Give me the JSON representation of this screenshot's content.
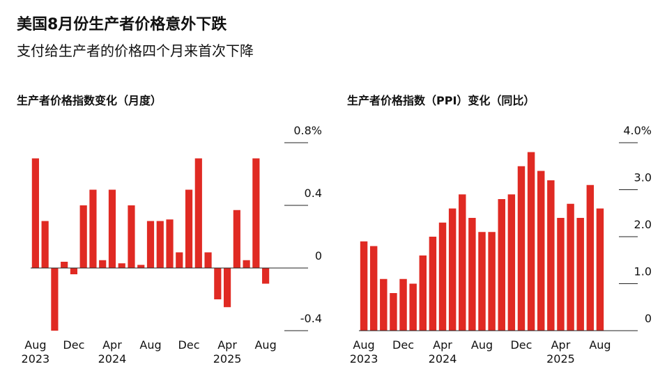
{
  "title": "美国8月份生产者价格意外下跌",
  "subtitle": "支付给生产者的价格四个月来首次下降",
  "chart_data": [
    {
      "type": "bar",
      "title": "生产者价格指数变化（月度）",
      "color": "#e02a23",
      "categories": [
        "Aug 2023",
        null,
        null,
        null,
        "Dec",
        null,
        null,
        null,
        "Apr 2024",
        null,
        null,
        null,
        "Aug",
        null,
        null,
        null,
        "Dec",
        null,
        null,
        null,
        "Apr 2025",
        null,
        null,
        null,
        "Aug"
      ],
      "values": [
        0.7,
        0.3,
        -0.4,
        0.04,
        -0.04,
        0.4,
        0.5,
        0.05,
        0.5,
        0.03,
        0.4,
        0.02,
        0.3,
        0.3,
        0.31,
        0.1,
        0.5,
        0.7,
        0.1,
        -0.2,
        -0.25,
        0.37,
        0.05,
        0.7,
        -0.1
      ],
      "ylim": [
        -0.4,
        0.8
      ],
      "yticks": [
        {
          "value": 0.8,
          "label": "0.8%"
        },
        0.4,
        0,
        -0.4
      ]
    },
    {
      "type": "bar",
      "title": "生产者价格指数（PPI）变化（同比）",
      "color": "#e02a23",
      "categories": [
        "Aug 2023",
        null,
        null,
        null,
        "Dec",
        null,
        null,
        null,
        "Apr 2024",
        null,
        null,
        null,
        "Aug",
        null,
        null,
        null,
        "Dec",
        null,
        null,
        null,
        "Apr 2025",
        null,
        null,
        null,
        "Aug"
      ],
      "values": [
        1.9,
        1.8,
        1.1,
        0.8,
        1.1,
        1.0,
        1.6,
        2.0,
        2.3,
        2.6,
        2.9,
        2.4,
        2.1,
        2.1,
        2.8,
        2.9,
        3.5,
        3.8,
        3.4,
        3.2,
        2.4,
        2.7,
        2.4,
        3.1,
        2.6
      ],
      "ylim": [
        0,
        4
      ],
      "yticks": [
        {
          "value": 4,
          "label": "4.0%"
        },
        {
          "value": 3,
          "label": "3.0"
        },
        {
          "value": 2,
          "label": "2.0"
        },
        {
          "value": 1,
          "label": "1.0"
        },
        0
      ]
    }
  ]
}
